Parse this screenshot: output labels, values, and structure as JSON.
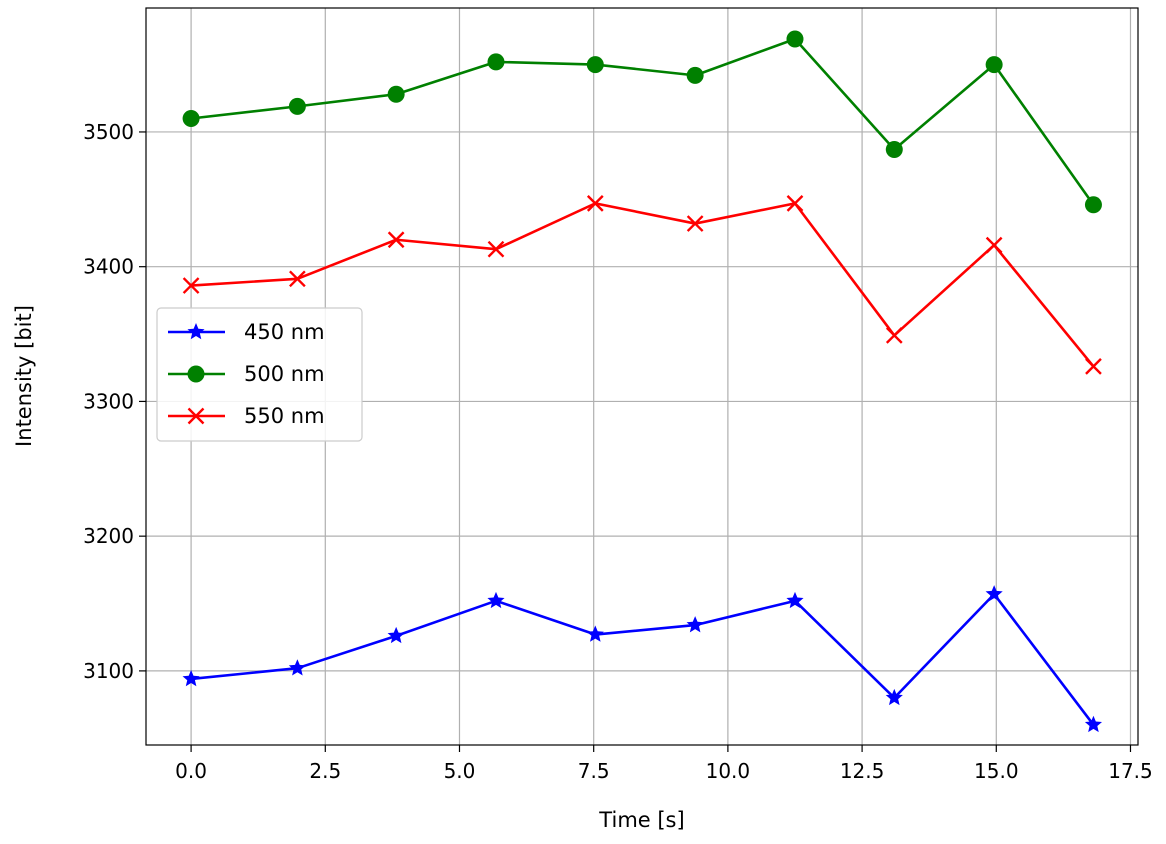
{
  "chart_data": {
    "type": "line",
    "title": "",
    "xlabel": "Time [s]",
    "ylabel": "Intensity [bit]",
    "xlim": [
      -0.84,
      17.64
    ],
    "ylim": [
      3045,
      3592
    ],
    "xticks": [
      0.0,
      2.5,
      5.0,
      7.5,
      10.0,
      12.5,
      15.0,
      17.5
    ],
    "xtick_labels": [
      "0.0",
      "2.5",
      "5.0",
      "7.5",
      "10.0",
      "12.5",
      "15.0",
      "17.5"
    ],
    "yticks": [
      3100,
      3200,
      3300,
      3400,
      3500
    ],
    "ytick_labels": [
      "3100",
      "3200",
      "3300",
      "3400",
      "3500"
    ],
    "grid": true,
    "legend_position": "center-left",
    "x": [
      0.0,
      1.98,
      3.82,
      5.68,
      7.53,
      9.39,
      11.25,
      13.1,
      14.96,
      16.81
    ],
    "series": [
      {
        "name": "450 nm",
        "color": "#0000ff",
        "marker": "star",
        "values": [
          3094,
          3102,
          3126,
          3152,
          3127,
          3134,
          3152,
          3080,
          3157,
          3060
        ]
      },
      {
        "name": "500 nm",
        "color": "#008000",
        "marker": "circle",
        "values": [
          3510,
          3519,
          3528,
          3552,
          3550,
          3542,
          3569,
          3487,
          3550,
          3446
        ]
      },
      {
        "name": "550 nm",
        "color": "#ff0000",
        "marker": "x",
        "values": [
          3386,
          3391,
          3420,
          3413,
          3447,
          3432,
          3447,
          3349,
          3416,
          3326
        ]
      }
    ]
  }
}
